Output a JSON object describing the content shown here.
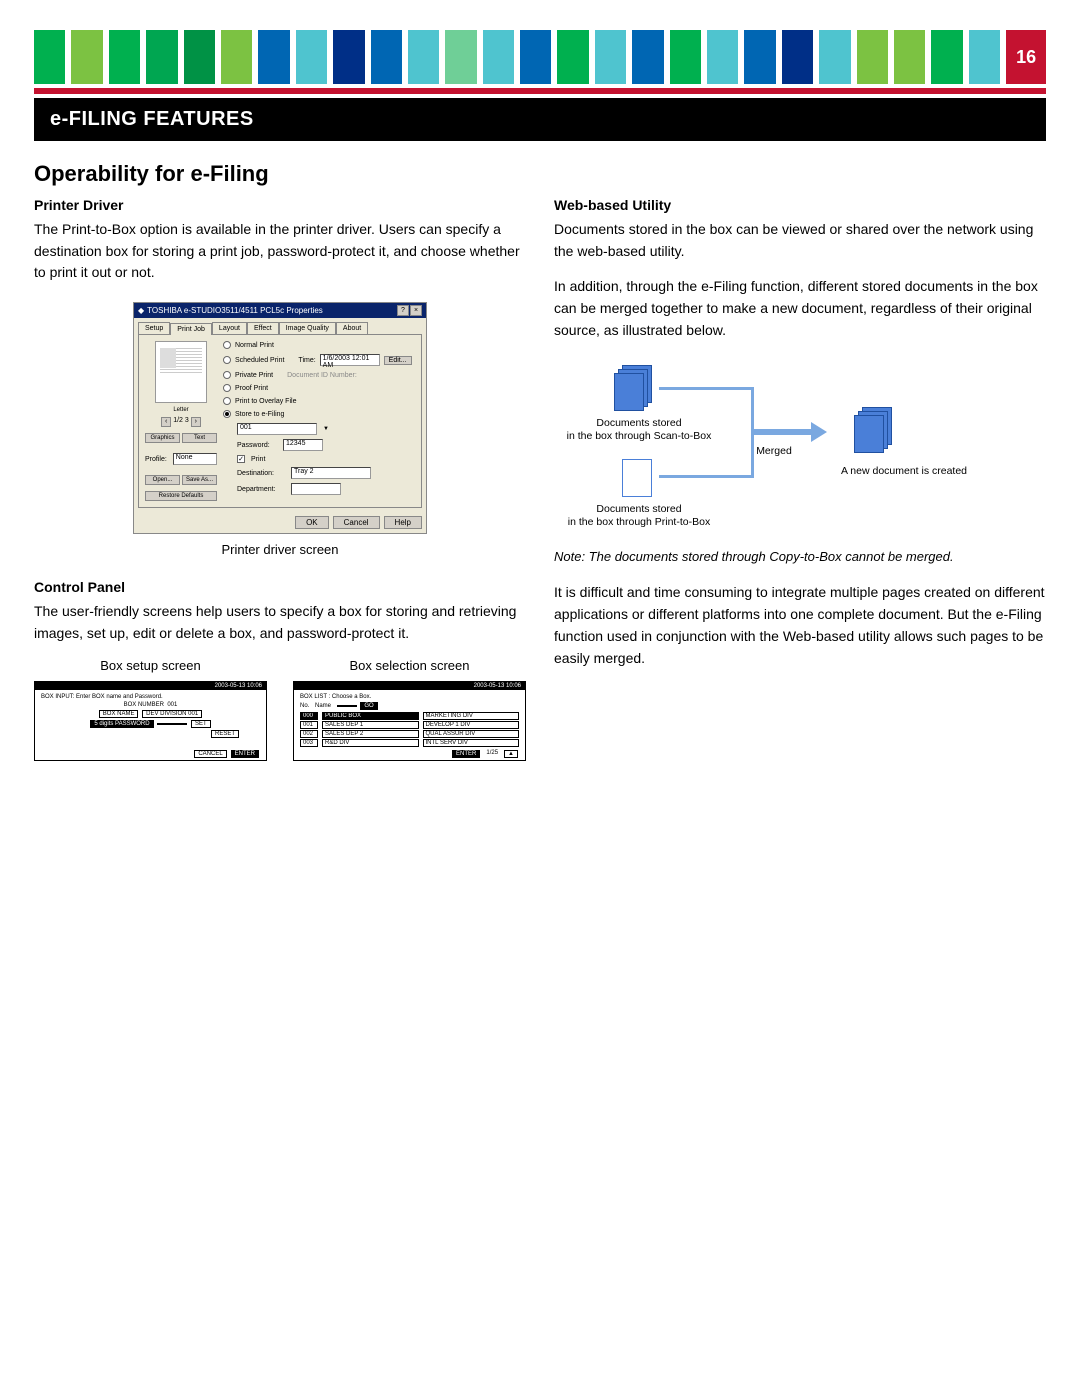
{
  "page_number": "16",
  "strip_colors": [
    "#00b04f",
    "#7cc242",
    "#00b04f",
    "#00a651",
    "#009245",
    "#7cc242",
    "#0066b3",
    "#4fc4cf",
    "#002f87",
    "#0066b3",
    "#4fc4cf",
    "#6fcf97",
    "#4fc4cf",
    "#0066b3",
    "#00b04f",
    "#4fc4cf",
    "#0066b3",
    "#00b04f",
    "#4fc4cf",
    "#0066b3",
    "#002f87",
    "#4fc4cf",
    "#7cc242",
    "#7cc242",
    "#00b04f",
    "#4fc4cf",
    "#c41230"
  ],
  "red_bar_color": "#c41230",
  "header": "e-FILING FEATURES",
  "section_title": "Operability for e-Filing",
  "left": {
    "printer_driver_title": "Printer Driver",
    "printer_driver_text": "The Print-to-Box option is available in the printer driver. Users can specify a destination box for storing a print job, password-protect it, and choose whether to print it out or not.",
    "printer_caption": "Printer driver screen",
    "control_panel_title": "Control Panel",
    "control_panel_text": "The user-friendly screens help users to specify a box for storing and retrieving images, set up, edit or delete a box, and password-protect it.",
    "box_setup_caption": "Box setup screen",
    "box_selection_caption": "Box selection screen"
  },
  "right": {
    "web_utility_title": "Web-based Utility",
    "web_utility_p1": "Documents stored in the box can be viewed or shared over the network using the web-based utility.",
    "web_utility_p2": "In addition, through the e-Filing function, different stored documents in the box can be merged together to make a new document, regardless of their original source, as illustrated below.",
    "note": "Note: The documents stored through Copy-to-Box cannot be merged.",
    "closing": "It is difficult and time consuming to integrate multiple pages created on different applications or different platforms into one complete document. But the e-Filing function used in conjunction with the Web-based utility allows such pages to be easily merged."
  },
  "diagram": {
    "scan_label": "Documents stored\nin the box through Scan-to-Box",
    "print_label": "Documents stored\nin the box through Print-to-Box",
    "merged_label": "Merged",
    "new_doc_label": "A new document is created",
    "doc_color": "#4a7fd8",
    "line_color": "#7aa8e0"
  },
  "printer_dialog": {
    "title": "TOSHIBA e-STUDIO3511/4511 PCL5c Properties",
    "tabs": [
      "Setup",
      "Print Job",
      "Layout",
      "Effect",
      "Image Quality",
      "About"
    ],
    "active_tab": 1,
    "radios": [
      "Normal Print",
      "Scheduled Print",
      "Private Print",
      "Proof Print",
      "Print to Overlay File",
      "Store to e-Filing"
    ],
    "selected_radio": 5,
    "time_label": "Time:",
    "time_value": "1/6/2003 12:01 AM",
    "edit_btn": "Edit...",
    "doc_label": "Document ID Number:",
    "dest_label": "Destination:",
    "dest_value": "001",
    "pwd_label": "Password:",
    "pwd_value": "12345",
    "print_chk": "Print",
    "btn_open": "Open...",
    "btn_save": "Save As...",
    "btn_restore": "Restore Defaults",
    "dest2_label": "Destination:",
    "dest2_value": "Tray 2",
    "dept_label": "Department:",
    "letter": "Letter",
    "pages": "1/2 3",
    "graphics": "Graphics",
    "text": "Text",
    "profile_label": "Profile:",
    "profile_value": "None",
    "ok": "OK",
    "cancel": "Cancel",
    "help": "Help"
  },
  "cp_setup": {
    "timestamp": "2003-05-13 10:06",
    "header": "BOX INPUT: Enter BOX name and Password.",
    "boxnum_lbl": "BOX NUMBER",
    "boxnum_val": "001",
    "boxname_lbl": "BOX NAME",
    "boxname_val": "DEV DIVISION 001",
    "set": "SET",
    "pwd_lbl": "5 digits PASSWORD",
    "reset": "RESET",
    "cancel": "CANCEL",
    "enter": "ENTER"
  },
  "cp_select": {
    "timestamp": "2003-05-13 10:06",
    "header": "BOX LIST : Choose a Box.",
    "no": "No.",
    "name": "Name",
    "go": "GO",
    "rows": [
      [
        "000",
        "PUBLIC BOX",
        "MARKETING DIV"
      ],
      [
        "001",
        "SALES DEP 1",
        "DEVELOP 1 DIV"
      ],
      [
        "002",
        "SALES DEP 2",
        "QUAL ASSUR DIV"
      ],
      [
        "003",
        "R&D DIV",
        "INTL SERV DIV"
      ]
    ],
    "enter": "ENTER",
    "page": "1/25"
  }
}
